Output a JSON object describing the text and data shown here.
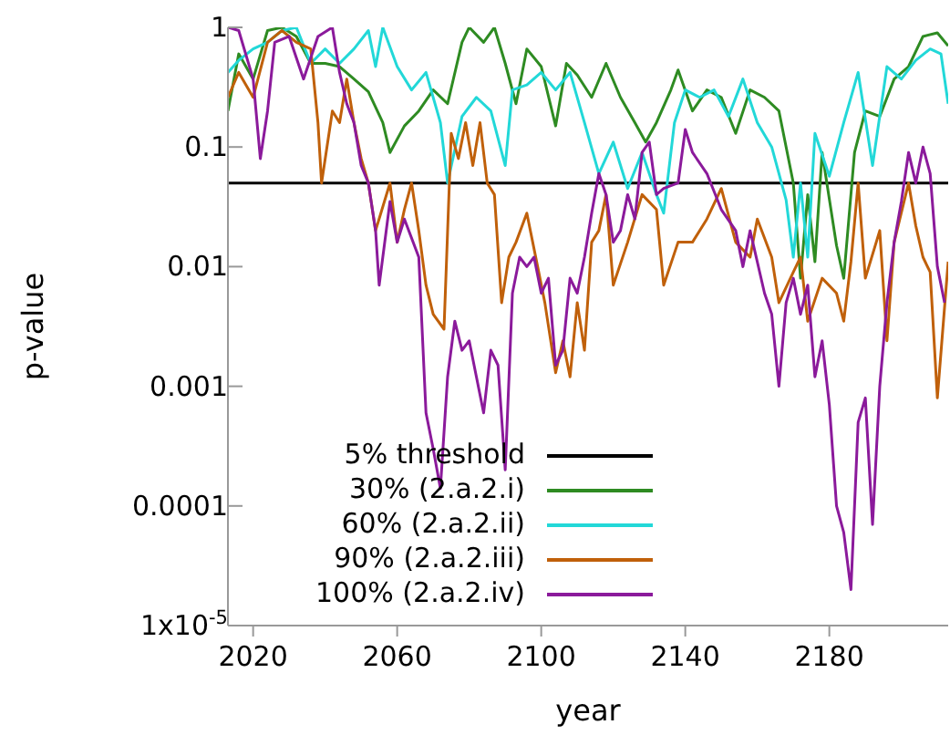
{
  "chart_data": {
    "type": "line",
    "xlabel": "year",
    "ylabel": "p-value",
    "log": "y",
    "xlim": [
      2013,
      2213
    ],
    "xticks": [
      2020,
      2060,
      2100,
      2140,
      2180
    ],
    "ylim": [
      1e-05,
      1
    ],
    "yticks": [
      1,
      0.1,
      0.01,
      0.001,
      0.0001,
      {
        "value": 1e-05,
        "label": "1x10$^{-5}$"
      }
    ],
    "legend": "bottom",
    "marker": "none",
    "line_style": "solid",
    "ref_lines": [
      {
        "axis": "y",
        "value": 0.05,
        "label": "5% threshold",
        "color": "#000000"
      }
    ],
    "series": [
      {
        "name": "30% (2.a.2.i)",
        "color": "#2e8b22",
        "x": [
          2013,
          2016,
          2020,
          2024,
          2028,
          2032,
          2036,
          2040,
          2044,
          2048,
          2052,
          2056,
          2058,
          2062,
          2066,
          2070,
          2074,
          2078,
          2080,
          2084,
          2087,
          2090,
          2093,
          2096,
          2100,
          2104,
          2107,
          2110,
          2114,
          2118,
          2122,
          2126,
          2129,
          2132,
          2136,
          2138,
          2142,
          2146,
          2150,
          2154,
          2158,
          2162,
          2166,
          2170,
          2172,
          2174,
          2176,
          2178,
          2182,
          2184,
          2187,
          2190,
          2194,
          2198,
          2202,
          2206,
          2210,
          2213
        ],
        "values": [
          0.2,
          0.6,
          0.37,
          0.94,
          1,
          0.84,
          0.5,
          0.5,
          0.47,
          0.37,
          0.29,
          0.16,
          0.09,
          0.15,
          0.2,
          0.3,
          0.23,
          0.75,
          1,
          0.75,
          1,
          0.5,
          0.23,
          0.66,
          0.47,
          0.15,
          0.5,
          0.4,
          0.26,
          0.5,
          0.26,
          0.16,
          0.11,
          0.16,
          0.3,
          0.44,
          0.2,
          0.3,
          0.26,
          0.13,
          0.3,
          0.26,
          0.2,
          0.05,
          0.008,
          0.04,
          0.011,
          0.09,
          0.015,
          0.008,
          0.09,
          0.2,
          0.18,
          0.37,
          0.47,
          0.84,
          0.9,
          0.7
        ]
      },
      {
        "name": "60% (2.a.2.ii)",
        "color": "#22d8d8",
        "x": [
          2013,
          2016,
          2020,
          2024,
          2028,
          2032,
          2036,
          2040,
          2044,
          2048,
          2052,
          2054,
          2056,
          2060,
          2064,
          2068,
          2072,
          2074,
          2078,
          2082,
          2086,
          2090,
          2092,
          2096,
          2100,
          2104,
          2108,
          2112,
          2116,
          2120,
          2124,
          2128,
          2132,
          2134,
          2137,
          2140,
          2144,
          2148,
          2152,
          2156,
          2160,
          2164,
          2168,
          2170,
          2172,
          2174,
          2176,
          2180,
          2184,
          2188,
          2192,
          2196,
          2200,
          2204,
          2208,
          2211,
          2213
        ],
        "values": [
          0.42,
          0.53,
          0.66,
          0.75,
          0.94,
          1,
          0.5,
          0.66,
          0.5,
          0.66,
          0.94,
          0.47,
          1,
          0.47,
          0.3,
          0.42,
          0.16,
          0.05,
          0.18,
          0.26,
          0.2,
          0.07,
          0.3,
          0.33,
          0.42,
          0.3,
          0.42,
          0.16,
          0.06,
          0.11,
          0.045,
          0.09,
          0.04,
          0.028,
          0.16,
          0.3,
          0.26,
          0.3,
          0.18,
          0.37,
          0.16,
          0.1,
          0.036,
          0.012,
          0.05,
          0.012,
          0.13,
          0.057,
          0.16,
          0.42,
          0.07,
          0.47,
          0.37,
          0.53,
          0.66,
          0.6,
          0.23
        ]
      },
      {
        "name": "90% (2.a.2.iii)",
        "color": "#c0600a",
        "x": [
          2013,
          2016,
          2020,
          2024,
          2028,
          2032,
          2036,
          2038,
          2039,
          2042,
          2044,
          2046,
          2048,
          2050,
          2052,
          2054,
          2058,
          2060,
          2062,
          2064,
          2066,
          2068,
          2070,
          2073,
          2075,
          2077,
          2079,
          2081,
          2083,
          2085,
          2087,
          2089,
          2091,
          2093,
          2096,
          2099,
          2101,
          2104,
          2106,
          2108,
          2110,
          2112,
          2114,
          2116,
          2118,
          2120,
          2124,
          2128,
          2132,
          2134,
          2138,
          2142,
          2146,
          2150,
          2154,
          2158,
          2160,
          2164,
          2166,
          2170,
          2172,
          2174,
          2178,
          2182,
          2184,
          2186,
          2188,
          2190,
          2194,
          2196,
          2198,
          2202,
          2204,
          2206,
          2208,
          2210,
          2213
        ],
        "values": [
          0.26,
          0.42,
          0.26,
          0.75,
          0.94,
          0.75,
          0.66,
          0.16,
          0.05,
          0.2,
          0.16,
          0.37,
          0.16,
          0.08,
          0.05,
          0.02,
          0.05,
          0.016,
          0.03,
          0.05,
          0.02,
          0.007,
          0.004,
          0.003,
          0.13,
          0.08,
          0.16,
          0.07,
          0.16,
          0.05,
          0.04,
          0.005,
          0.012,
          0.016,
          0.028,
          0.01,
          0.005,
          0.0013,
          0.0024,
          0.0012,
          0.005,
          0.002,
          0.016,
          0.02,
          0.04,
          0.007,
          0.016,
          0.04,
          0.03,
          0.007,
          0.016,
          0.016,
          0.025,
          0.045,
          0.016,
          0.012,
          0.025,
          0.012,
          0.005,
          0.009,
          0.012,
          0.0035,
          0.008,
          0.006,
          0.0035,
          0.011,
          0.05,
          0.008,
          0.02,
          0.0024,
          0.016,
          0.05,
          0.022,
          0.012,
          0.009,
          0.0008,
          0.011
        ]
      },
      {
        "name": "100% (2.a.2.iv)",
        "color": "#8b1a9b",
        "x": [
          2013,
          2016,
          2020,
          2022,
          2024,
          2026,
          2030,
          2034,
          2038,
          2042,
          2044,
          2046,
          2048,
          2050,
          2052,
          2054,
          2055,
          2058,
          2060,
          2062,
          2066,
          2068,
          2070,
          2072,
          2074,
          2076,
          2078,
          2080,
          2082,
          2084,
          2086,
          2088,
          2090,
          2092,
          2094,
          2096,
          2098,
          2100,
          2102,
          2104,
          2106,
          2108,
          2110,
          2112,
          2114,
          2116,
          2118,
          2120,
          2122,
          2124,
          2126,
          2128,
          2130,
          2132,
          2134,
          2138,
          2140,
          2142,
          2146,
          2150,
          2154,
          2156,
          2158,
          2162,
          2164,
          2166,
          2168,
          2170,
          2172,
          2174,
          2176,
          2178,
          2180,
          2182,
          2184,
          2186,
          2188,
          2190,
          2192,
          2194,
          2196,
          2198,
          2200,
          2202,
          2204,
          2206,
          2208,
          2210,
          2212
        ],
        "values": [
          1,
          0.94,
          0.37,
          0.08,
          0.2,
          0.75,
          0.84,
          0.37,
          0.84,
          1,
          0.42,
          0.23,
          0.16,
          0.07,
          0.05,
          0.02,
          0.007,
          0.035,
          0.016,
          0.025,
          0.012,
          0.0006,
          0.0003,
          0.00014,
          0.0012,
          0.0035,
          0.002,
          0.0024,
          0.0012,
          0.0006,
          0.002,
          0.0015,
          0.0002,
          0.006,
          0.012,
          0.01,
          0.012,
          0.006,
          0.008,
          0.0015,
          0.002,
          0.008,
          0.006,
          0.012,
          0.028,
          0.06,
          0.04,
          0.016,
          0.02,
          0.04,
          0.025,
          0.09,
          0.11,
          0.04,
          0.045,
          0.05,
          0.14,
          0.09,
          0.06,
          0.03,
          0.02,
          0.01,
          0.02,
          0.006,
          0.004,
          0.001,
          0.005,
          0.008,
          0.004,
          0.007,
          0.0012,
          0.0024,
          0.0007,
          0.0001,
          6e-05,
          2e-05,
          0.0005,
          0.0008,
          7e-05,
          0.001,
          0.005,
          0.016,
          0.035,
          0.09,
          0.05,
          0.1,
          0.06,
          0.01,
          0.005
        ]
      }
    ]
  }
}
